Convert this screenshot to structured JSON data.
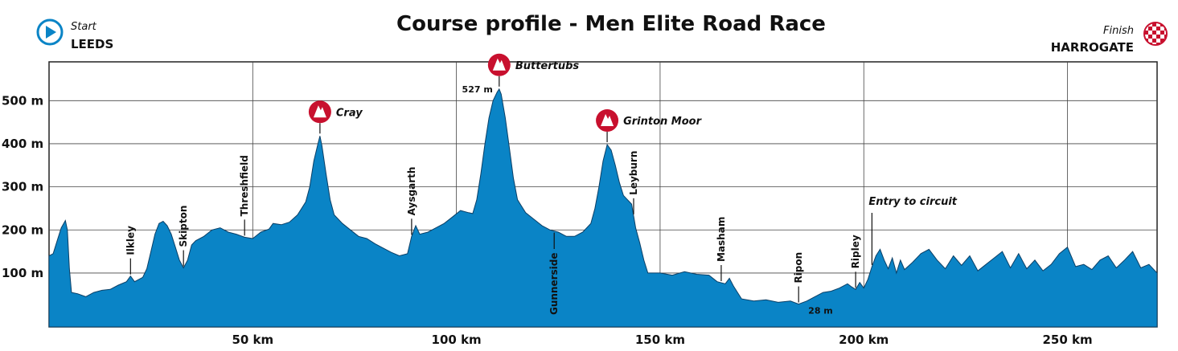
{
  "chart_data": {
    "type": "area",
    "title": "Course profile - Men Elite Road Race",
    "xlabel": "",
    "ylabel": "",
    "xlim": [
      0,
      272
    ],
    "ylim": [
      -25,
      590
    ],
    "x_ticks": [
      {
        "value": 50,
        "label": "50 km"
      },
      {
        "value": 100,
        "label": "100 km"
      },
      {
        "value": 150,
        "label": "150 km"
      },
      {
        "value": 200,
        "label": "200 km"
      },
      {
        "value": 250,
        "label": "250 km"
      }
    ],
    "y_ticks": [
      {
        "value": 100,
        "label": "100 m"
      },
      {
        "value": 200,
        "label": "200 m"
      },
      {
        "value": 300,
        "label": "300 m"
      },
      {
        "value": 400,
        "label": "400 m"
      },
      {
        "value": 500,
        "label": "500 m"
      }
    ],
    "grid": true,
    "fill_color": "#0a84c6",
    "climb_color": "#c8102e",
    "start": {
      "caption": "Start",
      "name": "LEEDS"
    },
    "finish": {
      "caption": "Finish",
      "name": "HARROGATE"
    },
    "profile": [
      [
        0,
        140
      ],
      [
        1,
        145
      ],
      [
        2,
        175
      ],
      [
        3,
        205
      ],
      [
        4,
        222
      ],
      [
        4.5,
        200
      ],
      [
        5,
        110
      ],
      [
        5.5,
        55
      ],
      [
        7,
        52
      ],
      [
        9,
        45
      ],
      [
        11,
        55
      ],
      [
        13,
        60
      ],
      [
        15,
        62
      ],
      [
        17,
        72
      ],
      [
        19,
        80
      ],
      [
        20,
        93
      ],
      [
        21,
        80
      ],
      [
        23,
        90
      ],
      [
        24,
        110
      ],
      [
        25,
        150
      ],
      [
        26,
        190
      ],
      [
        27,
        215
      ],
      [
        28,
        220
      ],
      [
        29,
        210
      ],
      [
        30,
        190
      ],
      [
        31,
        160
      ],
      [
        32,
        130
      ],
      [
        33,
        112
      ],
      [
        34,
        130
      ],
      [
        35,
        165
      ],
      [
        36,
        175
      ],
      [
        38,
        185
      ],
      [
        40,
        200
      ],
      [
        42,
        205
      ],
      [
        44,
        195
      ],
      [
        46,
        190
      ],
      [
        48,
        183
      ],
      [
        50,
        180
      ],
      [
        52,
        195
      ],
      [
        54,
        202
      ],
      [
        55,
        215
      ],
      [
        57,
        212
      ],
      [
        59,
        218
      ],
      [
        61,
        235
      ],
      [
        63,
        265
      ],
      [
        64,
        300
      ],
      [
        65,
        360
      ],
      [
        66,
        400
      ],
      [
        66.5,
        418
      ],
      [
        67,
        395
      ],
      [
        68,
        330
      ],
      [
        69,
        270
      ],
      [
        70,
        235
      ],
      [
        72,
        215
      ],
      [
        74,
        200
      ],
      [
        76,
        185
      ],
      [
        78,
        180
      ],
      [
        80,
        168
      ],
      [
        82,
        158
      ],
      [
        84,
        148
      ],
      [
        86,
        140
      ],
      [
        88,
        145
      ],
      [
        89,
        185
      ],
      [
        90,
        210
      ],
      [
        91,
        190
      ],
      [
        93,
        195
      ],
      [
        95,
        205
      ],
      [
        97,
        215
      ],
      [
        99,
        230
      ],
      [
        101,
        245
      ],
      [
        103,
        240
      ],
      [
        104,
        238
      ],
      [
        105,
        270
      ],
      [
        106,
        330
      ],
      [
        107,
        400
      ],
      [
        108,
        460
      ],
      [
        109,
        500
      ],
      [
        110,
        520
      ],
      [
        110.5,
        527
      ],
      [
        111,
        515
      ],
      [
        112,
        460
      ],
      [
        113,
        390
      ],
      [
        114,
        320
      ],
      [
        115,
        270
      ],
      [
        117,
        240
      ],
      [
        119,
        225
      ],
      [
        121,
        210
      ],
      [
        123,
        200
      ],
      [
        125,
        195
      ],
      [
        127,
        185
      ],
      [
        129,
        185
      ],
      [
        131,
        195
      ],
      [
        133,
        215
      ],
      [
        134,
        250
      ],
      [
        135,
        300
      ],
      [
        136,
        360
      ],
      [
        137,
        398
      ],
      [
        138,
        385
      ],
      [
        139,
        350
      ],
      [
        140,
        310
      ],
      [
        141,
        280
      ],
      [
        143,
        260
      ],
      [
        144,
        205
      ],
      [
        145,
        170
      ],
      [
        146,
        130
      ],
      [
        147,
        100
      ],
      [
        150,
        100
      ],
      [
        153,
        95
      ],
      [
        156,
        103
      ],
      [
        159,
        97
      ],
      [
        162,
        95
      ],
      [
        164,
        80
      ],
      [
        166,
        75
      ],
      [
        167,
        88
      ],
      [
        168,
        70
      ],
      [
        169,
        55
      ],
      [
        170,
        40
      ],
      [
        173,
        35
      ],
      [
        176,
        38
      ],
      [
        179,
        32
      ],
      [
        182,
        35
      ],
      [
        184,
        28
      ],
      [
        186,
        35
      ],
      [
        188,
        45
      ],
      [
        190,
        55
      ],
      [
        192,
        58
      ],
      [
        194,
        65
      ],
      [
        196,
        75
      ],
      [
        197,
        68
      ],
      [
        198,
        62
      ],
      [
        199,
        78
      ],
      [
        200,
        65
      ],
      [
        201,
        85
      ],
      [
        202,
        115
      ],
      [
        203,
        140
      ],
      [
        204,
        155
      ],
      [
        205,
        130
      ],
      [
        206,
        110
      ],
      [
        207,
        135
      ],
      [
        208,
        100
      ],
      [
        209,
        130
      ],
      [
        210,
        108
      ],
      [
        212,
        125
      ],
      [
        214,
        145
      ],
      [
        216,
        155
      ],
      [
        218,
        130
      ],
      [
        220,
        110
      ],
      [
        222,
        140
      ],
      [
        224,
        118
      ],
      [
        226,
        140
      ],
      [
        228,
        105
      ],
      [
        230,
        120
      ],
      [
        232,
        135
      ],
      [
        234,
        150
      ],
      [
        236,
        112
      ],
      [
        238,
        145
      ],
      [
        240,
        110
      ],
      [
        242,
        130
      ],
      [
        244,
        105
      ],
      [
        246,
        120
      ],
      [
        248,
        145
      ],
      [
        250,
        160
      ],
      [
        252,
        115
      ],
      [
        254,
        120
      ],
      [
        256,
        108
      ],
      [
        258,
        130
      ],
      [
        260,
        140
      ],
      [
        262,
        112
      ],
      [
        264,
        130
      ],
      [
        266,
        150
      ],
      [
        268,
        112
      ],
      [
        270,
        120
      ],
      [
        272,
        100
      ]
    ],
    "climbs": [
      {
        "name": "Cray",
        "x": 66.5
      },
      {
        "name": "Buttertubs",
        "x": 110.5
      },
      {
        "name": "Grinton Moor",
        "x": 137
      }
    ],
    "places": [
      {
        "name": "Ilkley",
        "x": 20
      },
      {
        "name": "Skipton",
        "x": 33
      },
      {
        "name": "Threshfield",
        "x": 48
      },
      {
        "name": "Aysgarth",
        "x": 89
      },
      {
        "name": "Gunnerside",
        "x": 124
      },
      {
        "name": "Leyburn",
        "x": 143.5
      },
      {
        "name": "Masham",
        "x": 165
      },
      {
        "name": "Ripon",
        "x": 184
      },
      {
        "name": "Ripley",
        "x": 198
      },
      {
        "name": "Entry to circuit",
        "x": 202
      }
    ],
    "elevation_marks": [
      {
        "label": "527 m",
        "x": 110.5
      },
      {
        "label": "28 m",
        "x": 184
      }
    ]
  }
}
